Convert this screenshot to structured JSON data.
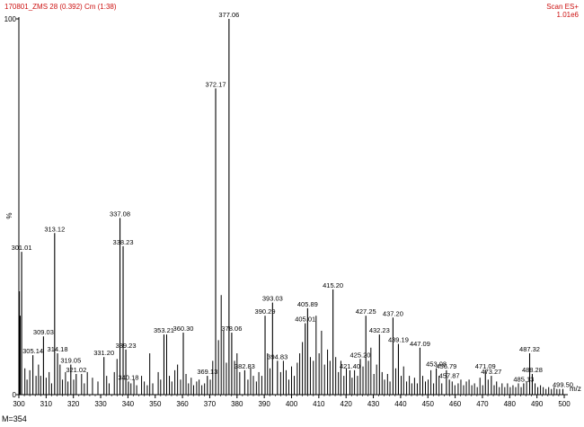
{
  "header": {
    "sample": "170801_ZMS 28 (0.392) Cm (1:38)",
    "scan_mode": "Scan ES+",
    "intensity": "1.01e6"
  },
  "footer": {
    "note": "M=354"
  },
  "colors": {
    "axis": "#000000",
    "peaks": "#000000",
    "header_text": "#cc1111"
  },
  "chart_data": {
    "type": "bar",
    "title": "",
    "xlabel": "m/z",
    "ylabel": "%",
    "xlim": [
      300,
      500
    ],
    "ylim": [
      0,
      100
    ],
    "x_ticks": [
      300,
      310,
      320,
      330,
      340,
      350,
      360,
      370,
      380,
      390,
      400,
      410,
      420,
      430,
      440,
      450,
      460,
      470,
      480,
      490,
      500
    ],
    "y_ticks": [
      0,
      100
    ],
    "labeled_peaks": [
      {
        "mz": 301.01,
        "label": "301.01",
        "intensity": 38.0
      },
      {
        "mz": 305.14,
        "label": "305.14",
        "intensity": 10.5
      },
      {
        "mz": 309.03,
        "label": "309.03",
        "intensity": 15.5
      },
      {
        "mz": 313.12,
        "label": "313.12",
        "intensity": 43.0
      },
      {
        "mz": 314.18,
        "label": "314.18",
        "intensity": 11.0
      },
      {
        "mz": 319.05,
        "label": "319.05",
        "intensity": 8.0
      },
      {
        "mz": 321.02,
        "label": "321.02",
        "intensity": 5.5
      },
      {
        "mz": 331.2,
        "label": "331.20",
        "intensity": 10.0
      },
      {
        "mz": 337.08,
        "label": "337.08",
        "intensity": 47.0
      },
      {
        "mz": 338.23,
        "label": "338.23",
        "intensity": 39.5
      },
      {
        "mz": 339.23,
        "label": "339.23",
        "intensity": 12.0
      },
      {
        "mz": 340.18,
        "label": "340.18",
        "intensity": 3.5
      },
      {
        "mz": 353.21,
        "label": "353.21",
        "intensity": 16.0
      },
      {
        "mz": 360.3,
        "label": "360.30",
        "intensity": 16.5
      },
      {
        "mz": 369.13,
        "label": "369.13",
        "intensity": 5.0
      },
      {
        "mz": 372.17,
        "label": "372.17",
        "intensity": 81.5
      },
      {
        "mz": 377.06,
        "label": "377.06",
        "intensity": 100.0
      },
      {
        "mz": 378.06,
        "label": "378.06",
        "intensity": 16.5
      },
      {
        "mz": 382.83,
        "label": "382.83",
        "intensity": 6.5
      },
      {
        "mz": 390.29,
        "label": "390.29",
        "intensity": 21.0
      },
      {
        "mz": 393.03,
        "label": "393.03",
        "intensity": 24.5
      },
      {
        "mz": 394.83,
        "label": "394.83",
        "intensity": 9.0
      },
      {
        "mz": 405.01,
        "label": "405.01",
        "intensity": 19.0
      },
      {
        "mz": 405.89,
        "label": "405.89",
        "intensity": 23.0
      },
      {
        "mz": 415.2,
        "label": "415.20",
        "intensity": 28.0
      },
      {
        "mz": 421.4,
        "label": "421.40",
        "intensity": 6.5
      },
      {
        "mz": 425.2,
        "label": "425.20",
        "intensity": 9.5
      },
      {
        "mz": 427.25,
        "label": "427.25",
        "intensity": 21.0
      },
      {
        "mz": 432.23,
        "label": "432.23",
        "intensity": 16.0
      },
      {
        "mz": 437.2,
        "label": "437.20",
        "intensity": 20.5
      },
      {
        "mz": 439.19,
        "label": "439.19",
        "intensity": 13.5
      },
      {
        "mz": 447.09,
        "label": "447.09",
        "intensity": 12.5
      },
      {
        "mz": 453.08,
        "label": "453.08",
        "intensity": 7.0
      },
      {
        "mz": 456.79,
        "label": "456.79",
        "intensity": 6.5
      },
      {
        "mz": 457.87,
        "label": "457.87",
        "intensity": 4.0
      },
      {
        "mz": 471.09,
        "label": "471.09",
        "intensity": 6.5
      },
      {
        "mz": 473.27,
        "label": "473.27",
        "intensity": 5.0
      },
      {
        "mz": 485.13,
        "label": "485.13",
        "intensity": 3.0
      },
      {
        "mz": 487.32,
        "label": "487.32",
        "intensity": 11.0
      },
      {
        "mz": 488.28,
        "label": "488.28",
        "intensity": 5.5
      },
      {
        "mz": 499.5,
        "label": "499.50",
        "intensity": 1.5
      }
    ],
    "minor_peaks": [
      {
        "mz": 300.2,
        "intensity": 27.5
      },
      {
        "mz": 300.5,
        "intensity": 21.0
      },
      {
        "mz": 302.2,
        "intensity": 7.0
      },
      {
        "mz": 303.0,
        "intensity": 4.0
      },
      {
        "mz": 304.0,
        "intensity": 6.5
      },
      {
        "mz": 306.3,
        "intensity": 5.0
      },
      {
        "mz": 307.2,
        "intensity": 8.0
      },
      {
        "mz": 308.0,
        "intensity": 5.0
      },
      {
        "mz": 310.0,
        "intensity": 4.5
      },
      {
        "mz": 311.1,
        "intensity": 6.0
      },
      {
        "mz": 312.0,
        "intensity": 3.0
      },
      {
        "mz": 315.1,
        "intensity": 8.0
      },
      {
        "mz": 316.0,
        "intensity": 4.0
      },
      {
        "mz": 317.1,
        "intensity": 6.0
      },
      {
        "mz": 318.0,
        "intensity": 3.5
      },
      {
        "mz": 320.1,
        "intensity": 4.0
      },
      {
        "mz": 323.0,
        "intensity": 5.5
      },
      {
        "mz": 324.0,
        "intensity": 3.0
      },
      {
        "mz": 325.1,
        "intensity": 6.0
      },
      {
        "mz": 327.0,
        "intensity": 4.5
      },
      {
        "mz": 329.0,
        "intensity": 3.5
      },
      {
        "mz": 332.2,
        "intensity": 5.0
      },
      {
        "mz": 333.1,
        "intensity": 3.0
      },
      {
        "mz": 335.0,
        "intensity": 6.0
      },
      {
        "mz": 336.0,
        "intensity": 9.5
      },
      {
        "mz": 341.1,
        "intensity": 3.0
      },
      {
        "mz": 342.2,
        "intensity": 4.0
      },
      {
        "mz": 343.2,
        "intensity": 2.5
      },
      {
        "mz": 345.0,
        "intensity": 5.0
      },
      {
        "mz": 346.0,
        "intensity": 3.5
      },
      {
        "mz": 347.1,
        "intensity": 2.5
      },
      {
        "mz": 348.0,
        "intensity": 11.0
      },
      {
        "mz": 349.1,
        "intensity": 3.0
      },
      {
        "mz": 351.1,
        "intensity": 6.0
      },
      {
        "mz": 352.0,
        "intensity": 4.0
      },
      {
        "mz": 354.2,
        "intensity": 16.0
      },
      {
        "mz": 355.2,
        "intensity": 5.0
      },
      {
        "mz": 356.1,
        "intensity": 3.5
      },
      {
        "mz": 357.2,
        "intensity": 6.5
      },
      {
        "mz": 358.2,
        "intensity": 8.0
      },
      {
        "mz": 359.3,
        "intensity": 4.0
      },
      {
        "mz": 361.3,
        "intensity": 5.5
      },
      {
        "mz": 362.2,
        "intensity": 3.0
      },
      {
        "mz": 363.2,
        "intensity": 4.5
      },
      {
        "mz": 364.1,
        "intensity": 2.5
      },
      {
        "mz": 365.2,
        "intensity": 3.5
      },
      {
        "mz": 366.1,
        "intensity": 4.0
      },
      {
        "mz": 367.1,
        "intensity": 2.5
      },
      {
        "mz": 368.1,
        "intensity": 3.0
      },
      {
        "mz": 370.2,
        "intensity": 4.0
      },
      {
        "mz": 371.1,
        "intensity": 9.0
      },
      {
        "mz": 373.2,
        "intensity": 14.5
      },
      {
        "mz": 374.2,
        "intensity": 26.5
      },
      {
        "mz": 375.1,
        "intensity": 17.0
      },
      {
        "mz": 376.1,
        "intensity": 8.5
      },
      {
        "mz": 379.1,
        "intensity": 9.0
      },
      {
        "mz": 380.0,
        "intensity": 11.0
      },
      {
        "mz": 381.0,
        "intensity": 6.0
      },
      {
        "mz": 384.0,
        "intensity": 4.0
      },
      {
        "mz": 385.0,
        "intensity": 7.0
      },
      {
        "mz": 386.0,
        "intensity": 5.0
      },
      {
        "mz": 387.1,
        "intensity": 3.5
      },
      {
        "mz": 388.0,
        "intensity": 6.0
      },
      {
        "mz": 389.1,
        "intensity": 5.0
      },
      {
        "mz": 391.2,
        "intensity": 11.0
      },
      {
        "mz": 392.1,
        "intensity": 7.0
      },
      {
        "mz": 396.0,
        "intensity": 6.0
      },
      {
        "mz": 397.0,
        "intensity": 9.0
      },
      {
        "mz": 398.0,
        "intensity": 6.5
      },
      {
        "mz": 399.0,
        "intensity": 4.0
      },
      {
        "mz": 400.0,
        "intensity": 7.5
      },
      {
        "mz": 401.0,
        "intensity": 5.0
      },
      {
        "mz": 402.1,
        "intensity": 8.5
      },
      {
        "mz": 403.0,
        "intensity": 11.0
      },
      {
        "mz": 404.0,
        "intensity": 14.0
      },
      {
        "mz": 406.9,
        "intensity": 10.0
      },
      {
        "mz": 408.0,
        "intensity": 9.0
      },
      {
        "mz": 409.0,
        "intensity": 21.0
      },
      {
        "mz": 410.1,
        "intensity": 11.0
      },
      {
        "mz": 411.0,
        "intensity": 17.0
      },
      {
        "mz": 412.1,
        "intensity": 8.0
      },
      {
        "mz": 413.2,
        "intensity": 12.0
      },
      {
        "mz": 414.1,
        "intensity": 9.0
      },
      {
        "mz": 416.2,
        "intensity": 10.0
      },
      {
        "mz": 417.2,
        "intensity": 6.0
      },
      {
        "mz": 418.1,
        "intensity": 9.0
      },
      {
        "mz": 419.2,
        "intensity": 5.0
      },
      {
        "mz": 420.1,
        "intensity": 7.0
      },
      {
        "mz": 422.2,
        "intensity": 4.5
      },
      {
        "mz": 423.1,
        "intensity": 6.5
      },
      {
        "mz": 424.2,
        "intensity": 5.0
      },
      {
        "mz": 426.2,
        "intensity": 7.5
      },
      {
        "mz": 428.2,
        "intensity": 9.0
      },
      {
        "mz": 429.1,
        "intensity": 12.5
      },
      {
        "mz": 430.2,
        "intensity": 5.5
      },
      {
        "mz": 431.2,
        "intensity": 8.0
      },
      {
        "mz": 433.2,
        "intensity": 6.0
      },
      {
        "mz": 434.1,
        "intensity": 4.0
      },
      {
        "mz": 435.2,
        "intensity": 5.5
      },
      {
        "mz": 436.1,
        "intensity": 3.5
      },
      {
        "mz": 438.2,
        "intensity": 7.0
      },
      {
        "mz": 440.2,
        "intensity": 5.0
      },
      {
        "mz": 441.1,
        "intensity": 7.5
      },
      {
        "mz": 442.2,
        "intensity": 3.5
      },
      {
        "mz": 443.2,
        "intensity": 5.0
      },
      {
        "mz": 444.1,
        "intensity": 3.0
      },
      {
        "mz": 445.1,
        "intensity": 4.5
      },
      {
        "mz": 446.1,
        "intensity": 3.0
      },
      {
        "mz": 448.1,
        "intensity": 5.0
      },
      {
        "mz": 449.1,
        "intensity": 3.5
      },
      {
        "mz": 450.1,
        "intensity": 4.0
      },
      {
        "mz": 451.1,
        "intensity": 6.5
      },
      {
        "mz": 452.1,
        "intensity": 3.0
      },
      {
        "mz": 454.1,
        "intensity": 5.0
      },
      {
        "mz": 455.1,
        "intensity": 3.0
      },
      {
        "mz": 458.9,
        "intensity": 3.5
      },
      {
        "mz": 459.9,
        "intensity": 2.5
      },
      {
        "mz": 461.1,
        "intensity": 3.0
      },
      {
        "mz": 462.1,
        "intensity": 4.0
      },
      {
        "mz": 463.1,
        "intensity": 2.5
      },
      {
        "mz": 464.1,
        "intensity": 3.5
      },
      {
        "mz": 465.1,
        "intensity": 4.0
      },
      {
        "mz": 466.1,
        "intensity": 2.5
      },
      {
        "mz": 467.1,
        "intensity": 3.0
      },
      {
        "mz": 468.1,
        "intensity": 2.0
      },
      {
        "mz": 469.1,
        "intensity": 4.5
      },
      {
        "mz": 470.1,
        "intensity": 2.5
      },
      {
        "mz": 472.1,
        "intensity": 4.0
      },
      {
        "mz": 474.3,
        "intensity": 2.5
      },
      {
        "mz": 475.2,
        "intensity": 3.5
      },
      {
        "mz": 476.2,
        "intensity": 2.0
      },
      {
        "mz": 477.2,
        "intensity": 3.0
      },
      {
        "mz": 478.2,
        "intensity": 2.0
      },
      {
        "mz": 479.2,
        "intensity": 3.0
      },
      {
        "mz": 480.2,
        "intensity": 2.0
      },
      {
        "mz": 481.2,
        "intensity": 2.5
      },
      {
        "mz": 482.2,
        "intensity": 2.0
      },
      {
        "mz": 483.2,
        "intensity": 3.0
      },
      {
        "mz": 484.2,
        "intensity": 2.0
      },
      {
        "mz": 486.2,
        "intensity": 3.5
      },
      {
        "mz": 489.3,
        "intensity": 3.0
      },
      {
        "mz": 490.3,
        "intensity": 2.0
      },
      {
        "mz": 491.3,
        "intensity": 2.5
      },
      {
        "mz": 492.3,
        "intensity": 2.0
      },
      {
        "mz": 493.3,
        "intensity": 1.5
      },
      {
        "mz": 494.3,
        "intensity": 2.0
      },
      {
        "mz": 495.3,
        "intensity": 1.5
      },
      {
        "mz": 496.3,
        "intensity": 2.0
      },
      {
        "mz": 497.3,
        "intensity": 1.5
      },
      {
        "mz": 498.3,
        "intensity": 1.5
      }
    ]
  }
}
